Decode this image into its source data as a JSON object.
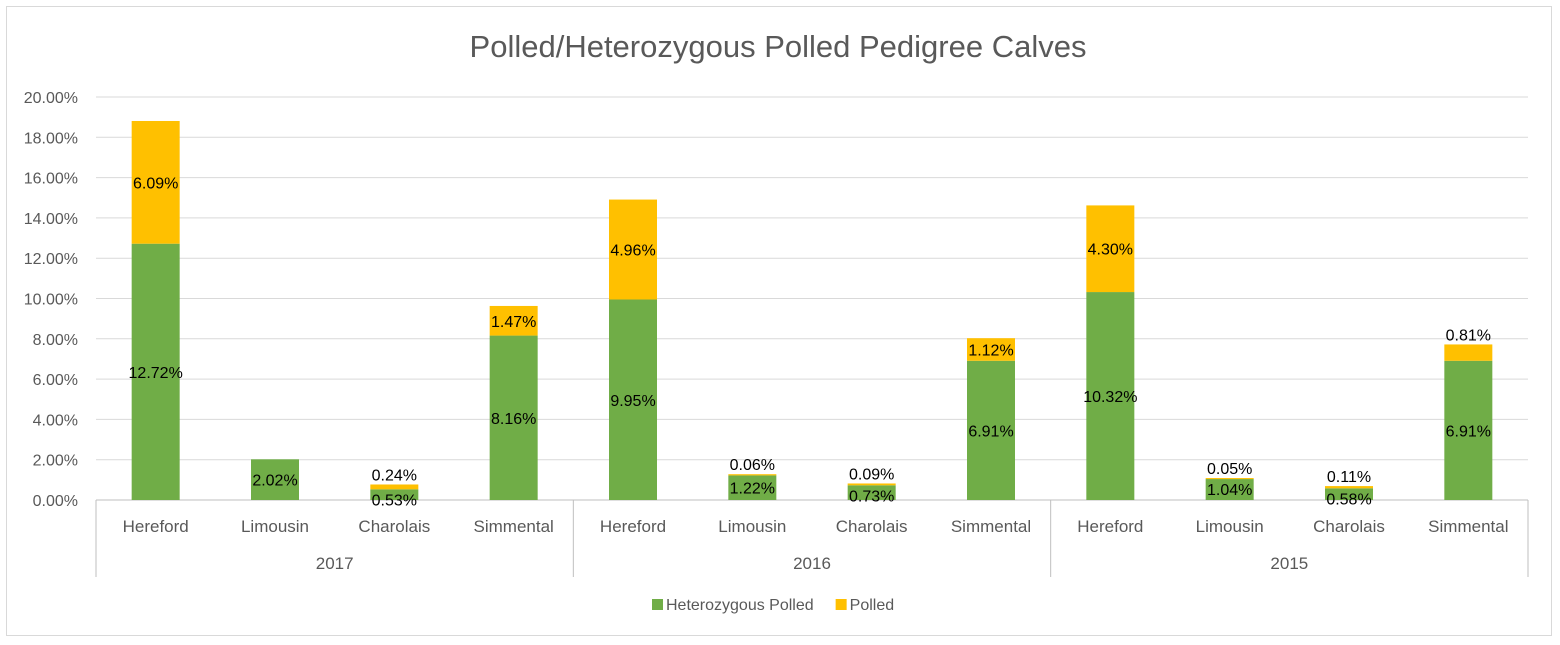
{
  "chart_data": {
    "type": "bar",
    "stacked": true,
    "title": "Polled/Heterozygous Polled Pedigree Calves",
    "xlabel": "",
    "ylabel": "",
    "ylim": [
      0,
      20
    ],
    "y_ticks": [
      "0.00%",
      "2.00%",
      "4.00%",
      "6.00%",
      "8.00%",
      "10.00%",
      "12.00%",
      "14.00%",
      "16.00%",
      "18.00%",
      "20.00%"
    ],
    "grid": true,
    "legend_position": "bottom",
    "groups": [
      {
        "label": "2017",
        "categories": [
          "Hereford",
          "Limousin",
          "Charolais",
          "Simmental"
        ]
      },
      {
        "label": "2016",
        "categories": [
          "Hereford",
          "Limousin",
          "Charolais",
          "Simmental"
        ]
      },
      {
        "label": "2015",
        "categories": [
          "Hereford",
          "Limousin",
          "Charolais",
          "Simmental"
        ]
      }
    ],
    "series": [
      {
        "name": "Heterozygous Polled",
        "color": "#70ad47",
        "values": [
          12.72,
          2.02,
          0.53,
          8.16,
          9.95,
          1.22,
          0.73,
          6.91,
          10.32,
          1.04,
          0.58,
          6.91
        ],
        "labels": [
          "12.72%",
          "2.02%",
          "0.53%",
          "8.16%",
          "9.95%",
          "1.22%",
          "0.73%",
          "6.91%",
          "10.32%",
          "1.04%",
          "0.58%",
          "6.91%"
        ]
      },
      {
        "name": "Polled",
        "color": "#ffc000",
        "values": [
          6.09,
          0,
          0.24,
          1.47,
          4.96,
          0.06,
          0.09,
          1.12,
          4.3,
          0.05,
          0.11,
          0.81
        ],
        "labels": [
          "6.09%",
          "",
          "0.24%",
          "1.47%",
          "4.96%",
          "0.06%",
          "0.09%",
          "1.12%",
          "4.30%",
          "0.05%",
          "0.11%",
          "0.81%"
        ]
      }
    ]
  }
}
